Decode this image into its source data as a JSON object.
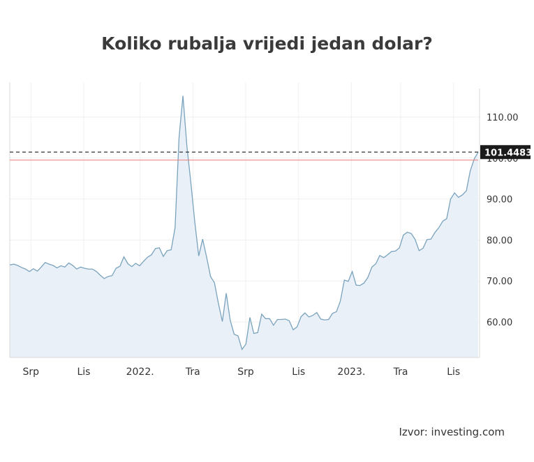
{
  "title": "Koliko rubalja vrijedi jedan dolar?",
  "source": "Izvor: investing.com",
  "chart_data": {
    "type": "area",
    "y_ticks": [
      60,
      70,
      80,
      90,
      100,
      110
    ],
    "y_tick_labels": [
      "60.00",
      "70.00",
      "80.00",
      "90.00",
      "100.00",
      "110.00"
    ],
    "ylim": [
      51,
      118
    ],
    "x_ticks": [
      {
        "label": "Srp",
        "x": 6
      },
      {
        "label": "Lis",
        "x": 21
      },
      {
        "label": "2022.",
        "x": 37
      },
      {
        "label": "Tra",
        "x": 52
      },
      {
        "label": "Srp",
        "x": 67
      },
      {
        "label": "Lis",
        "x": 82
      },
      {
        "label": "2023.",
        "x": 97
      },
      {
        "label": "Tra",
        "x": 111
      },
      {
        "label": "Lis",
        "x": 126
      }
    ],
    "xlim": [
      0,
      133
    ],
    "last_value": 101.4483,
    "last_value_label": "101.4483",
    "reference_value": 99.5,
    "colors": {
      "line": "#7aa3bd",
      "fill": "#e9f0f8",
      "reference_line": "#f07878",
      "last_line": "#333333",
      "last_label_bg": "#1a1a1a"
    },
    "series": [
      {
        "values": [
          73.9,
          74.1,
          73.8,
          73.3,
          72.9,
          72.3,
          73.0,
          72.4,
          73.4,
          74.5,
          74.1,
          73.8,
          73.2,
          73.7,
          73.4,
          74.4,
          73.8,
          72.9,
          73.4,
          73.1,
          72.9,
          72.9,
          72.3,
          71.4,
          70.6,
          71.1,
          71.3,
          73.1,
          73.6,
          75.9,
          74.2,
          73.5,
          74.3,
          73.7,
          74.8,
          75.8,
          76.4,
          77.9,
          78.1,
          76.0,
          77.4,
          77.6,
          83.0,
          105.0,
          115.2,
          103.0,
          94.0,
          84.5,
          76.1,
          80.2,
          75.9,
          71.1,
          69.6,
          64.6,
          60.1,
          67.0,
          60.4,
          57.0,
          56.6,
          53.3,
          54.6,
          61.1,
          57.2,
          57.4,
          61.9,
          60.8,
          60.8,
          59.2,
          60.6,
          60.6,
          60.7,
          60.3,
          58.1,
          58.8,
          61.3,
          62.2,
          61.2,
          61.6,
          62.3,
          60.7,
          60.5,
          60.6,
          62.1,
          62.5,
          65.1,
          70.2,
          69.9,
          72.3,
          69.0,
          68.9,
          69.5,
          70.9,
          73.4,
          74.2,
          76.2,
          75.7,
          76.4,
          77.2,
          77.3,
          78.1,
          81.2,
          81.9,
          81.6,
          80.1,
          77.4,
          78.0,
          80.1,
          80.2,
          81.8,
          83.0,
          84.6,
          85.2,
          90.0,
          91.5,
          90.4,
          91.0,
          92.0,
          96.9,
          99.8,
          101.4483
        ]
      }
    ]
  }
}
